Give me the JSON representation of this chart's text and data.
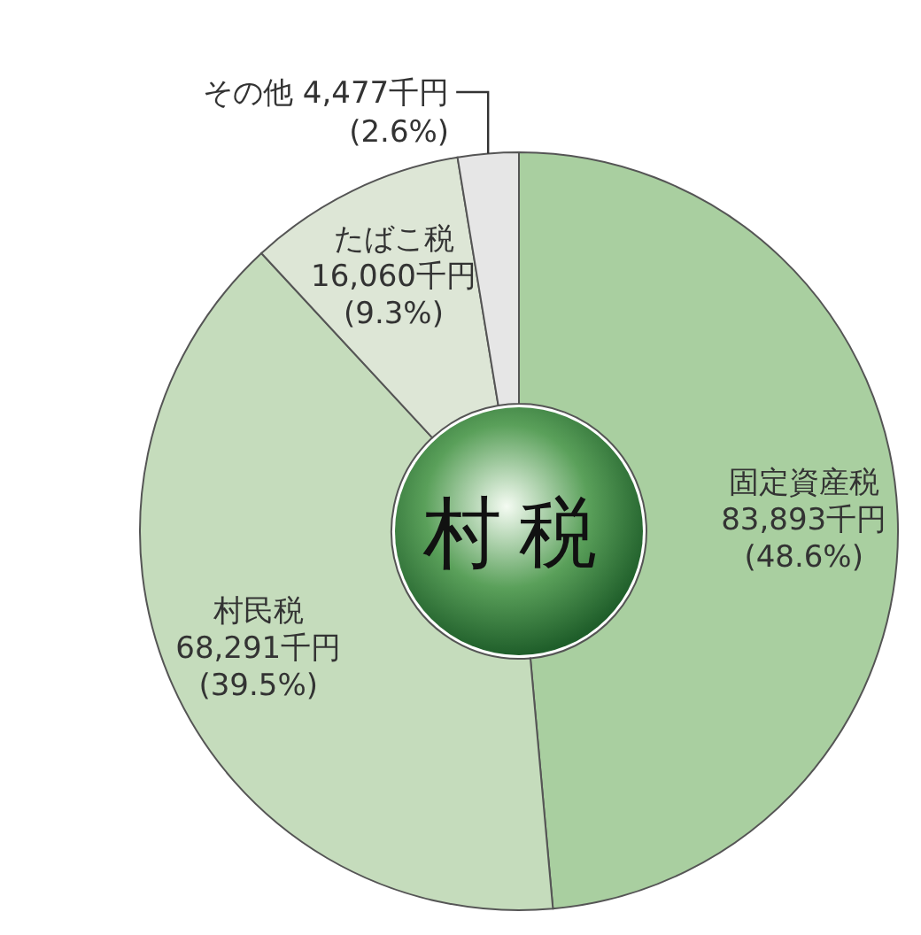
{
  "chart_data": {
    "type": "donut",
    "title": "村税",
    "categories": [
      "固定資産税",
      "村民税",
      "たばこ税",
      "その他"
    ],
    "values": [
      83893,
      68291,
      16060,
      4477
    ],
    "value_labels": [
      "83,893千円\n(48.6%)",
      "68,291千円\n(39.5%)",
      "16,060千円\n(9.3%)",
      "4,477千円\n(2.6%)"
    ],
    "colors": [
      "#a9cfa0",
      "#c5dcbc",
      "#dde6d6",
      "#e6e6e6"
    ]
  }
}
